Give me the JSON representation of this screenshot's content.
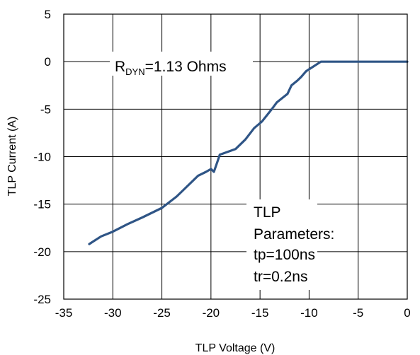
{
  "chart_data": {
    "type": "line",
    "xlabel": "TLP Voltage (V)",
    "ylabel": "TLP Current (A)",
    "xlim": [
      -35,
      0
    ],
    "ylim": [
      -25,
      5
    ],
    "x_ticks": [
      "-35",
      "-30",
      "-25",
      "-20",
      "-15",
      "-10",
      "-5",
      "0"
    ],
    "y_ticks": [
      "5",
      "0",
      "-5",
      "-10",
      "-15",
      "-20",
      "-25"
    ],
    "grid": true,
    "series": [
      {
        "color": "#2f5586",
        "points": [
          [
            -32.4,
            -19.2
          ],
          [
            -31.2,
            -18.4
          ],
          [
            -30.0,
            -17.9
          ],
          [
            -28.5,
            -17.1
          ],
          [
            -27.0,
            -16.4
          ],
          [
            -25.0,
            -15.4
          ],
          [
            -23.5,
            -14.2
          ],
          [
            -22.4,
            -13.1
          ],
          [
            -21.3,
            -12.0
          ],
          [
            -20.5,
            -11.6
          ],
          [
            -20.0,
            -11.3
          ],
          [
            -19.7,
            -11.6
          ],
          [
            -19.3,
            -10.4
          ],
          [
            -19.1,
            -9.8
          ],
          [
            -17.5,
            -9.2
          ],
          [
            -16.5,
            -8.2
          ],
          [
            -15.6,
            -7.0
          ],
          [
            -14.8,
            -6.3
          ],
          [
            -13.8,
            -5.0
          ],
          [
            -13.3,
            -4.3
          ],
          [
            -12.2,
            -3.4
          ],
          [
            -11.8,
            -2.5
          ],
          [
            -11.2,
            -2.0
          ],
          [
            -10.8,
            -1.6
          ],
          [
            -10.3,
            -1.0
          ],
          [
            -8.8,
            0.0
          ],
          [
            0.0,
            0.0
          ]
        ]
      }
    ],
    "annotations": {
      "rdyn_prefix": "R",
      "rdyn_subscript": "DYN",
      "rdyn_value": "=1.13 Ohms",
      "params_line1": "TLP",
      "params_line2": "Parameters:",
      "params_line3": "tp=100ns",
      "params_line4": "tr=0.2ns"
    }
  }
}
